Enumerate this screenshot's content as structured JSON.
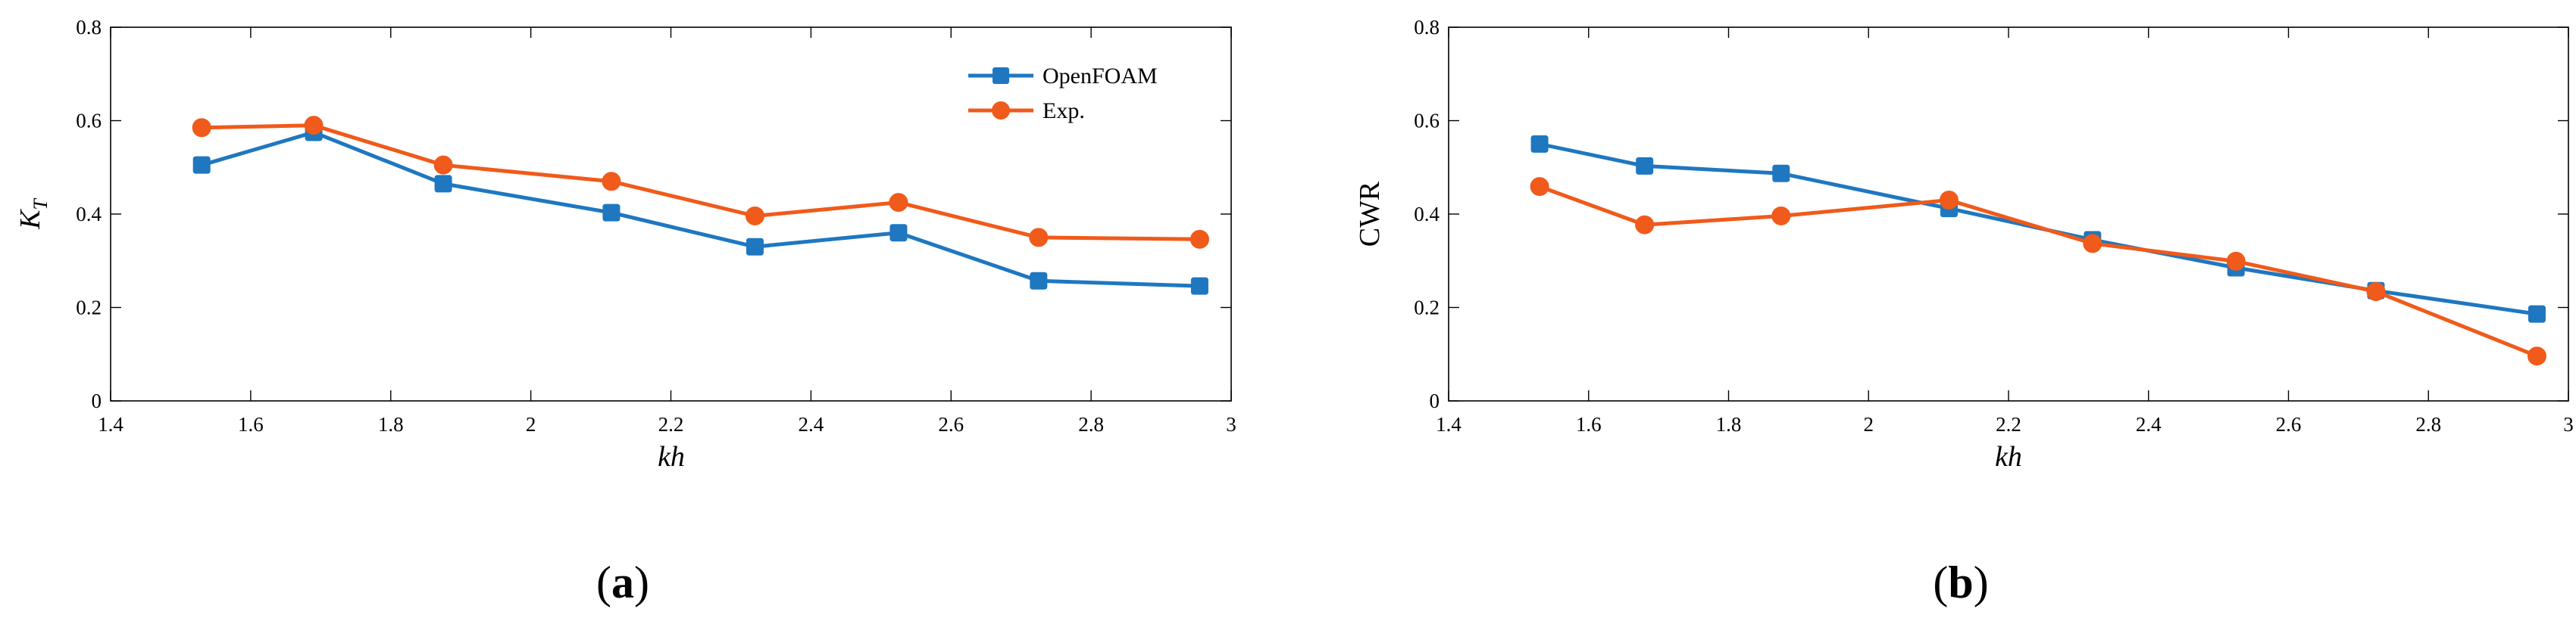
{
  "colors": {
    "openfoam": "#1f77c0",
    "exp": "#f05a1a",
    "axis": "#000000"
  },
  "chart_data": [
    {
      "type": "line",
      "panel_label": "(a)",
      "panel_letter": "a",
      "xlabel": "kh",
      "ylabel_main": "K",
      "ylabel_sub": "T",
      "xlim": [
        1.4,
        3.0
      ],
      "ylim": [
        0,
        0.8
      ],
      "xticks": [
        1.4,
        1.6,
        1.8,
        2.0,
        2.2,
        2.4,
        2.6,
        2.8,
        3.0
      ],
      "xtick_labels": [
        "1.4",
        "1.6",
        "1.8",
        "2",
        "2.2",
        "2.4",
        "2.6",
        "2.8",
        "3"
      ],
      "yticks": [
        0,
        0.2,
        0.4,
        0.6,
        0.8
      ],
      "ytick_labels": [
        "0",
        "0.2",
        "0.4",
        "0.6",
        "0.8"
      ],
      "legend": {
        "position": "top-right",
        "entries": [
          "OpenFOAM",
          "Exp."
        ]
      },
      "series": [
        {
          "name": "OpenFOAM",
          "marker": "square",
          "color": "#1f77c0",
          "x": [
            1.53,
            1.69,
            1.875,
            2.115,
            2.32,
            2.525,
            2.725,
            2.955
          ],
          "y": [
            0.505,
            0.575,
            0.465,
            0.403,
            0.33,
            0.36,
            0.257,
            0.246
          ]
        },
        {
          "name": "Exp.",
          "marker": "circle",
          "color": "#f05a1a",
          "x": [
            1.53,
            1.69,
            1.875,
            2.115,
            2.32,
            2.525,
            2.725,
            2.955
          ],
          "y": [
            0.585,
            0.59,
            0.505,
            0.47,
            0.396,
            0.425,
            0.35,
            0.346
          ]
        }
      ]
    },
    {
      "type": "line",
      "panel_label": "(b)",
      "panel_letter": "b",
      "xlabel": "kh",
      "ylabel_main": "CWR",
      "ylabel_sub": "",
      "xlim": [
        1.4,
        3.0
      ],
      "ylim": [
        0,
        0.8
      ],
      "xticks": [
        1.4,
        1.6,
        1.8,
        2.0,
        2.2,
        2.4,
        2.6,
        2.8,
        3.0
      ],
      "xtick_labels": [
        "1.4",
        "1.6",
        "1.8",
        "2",
        "2.2",
        "2.4",
        "2.6",
        "2.8",
        "3"
      ],
      "yticks": [
        0,
        0.2,
        0.4,
        0.6,
        0.8
      ],
      "ytick_labels": [
        "0",
        "0.2",
        "0.4",
        "0.6",
        "0.8"
      ],
      "legend": null,
      "series": [
        {
          "name": "OpenFOAM",
          "marker": "square",
          "color": "#1f77c0",
          "x": [
            1.53,
            1.68,
            1.875,
            2.115,
            2.32,
            2.525,
            2.725,
            2.955
          ],
          "y": [
            0.55,
            0.503,
            0.487,
            0.412,
            0.345,
            0.285,
            0.236,
            0.186
          ]
        },
        {
          "name": "Exp.",
          "marker": "circle",
          "color": "#f05a1a",
          "x": [
            1.53,
            1.68,
            1.875,
            2.115,
            2.32,
            2.525,
            2.725,
            2.955
          ],
          "y": [
            0.459,
            0.377,
            0.396,
            0.43,
            0.337,
            0.299,
            0.234,
            0.096
          ]
        }
      ]
    }
  ]
}
